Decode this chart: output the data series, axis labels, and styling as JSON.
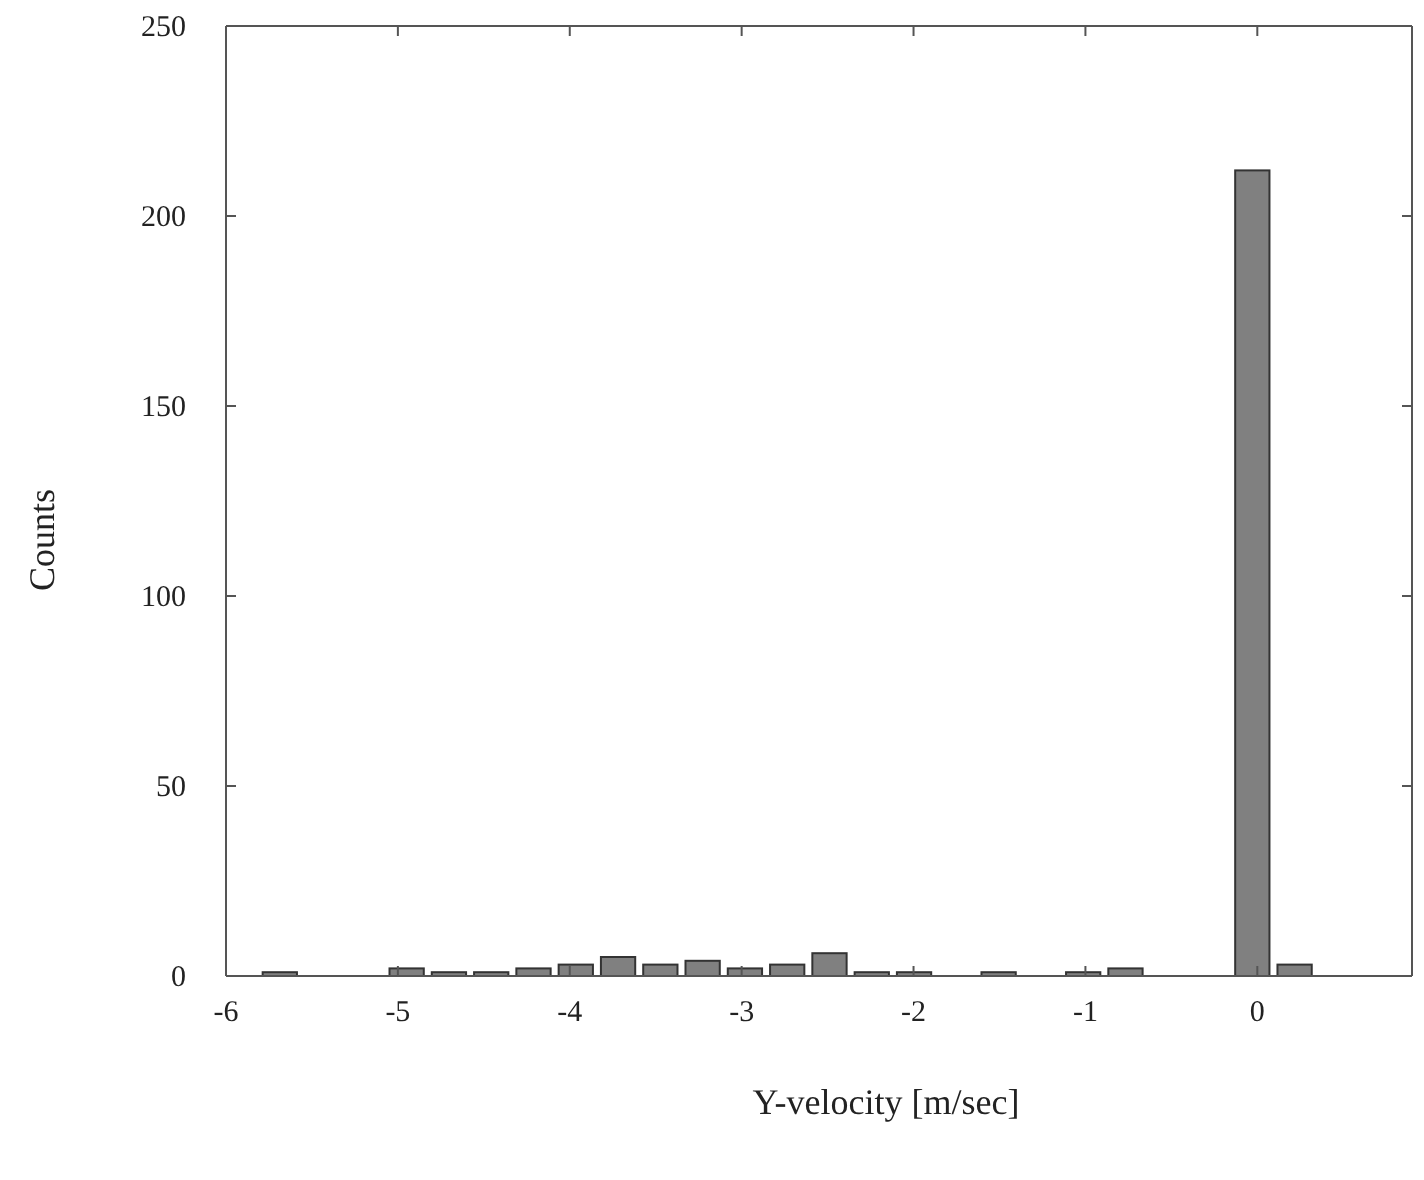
{
  "chart_data": {
    "type": "histogram",
    "xlabel": "Y-velocity [m/sec]",
    "ylabel": "Counts",
    "bins": [
      -5.81,
      -5.564,
      -5.318,
      -5.072,
      -4.826,
      -4.58,
      -4.334,
      -4.088,
      -3.842,
      -3.596,
      -3.35,
      -3.104,
      -2.858,
      -2.612,
      -2.366,
      -2.12,
      -1.874,
      -1.628,
      -1.382,
      -1.136,
      -0.89,
      -0.644,
      -0.398,
      -0.152,
      0.094,
      0.34
    ],
    "values": [
      1,
      0,
      0,
      2,
      1,
      1,
      2,
      3,
      5,
      3,
      4,
      2,
      3,
      6,
      1,
      1,
      0,
      1,
      0,
      1,
      2,
      0,
      0,
      212,
      3
    ],
    "color": "#808080",
    "xlim": [
      -6,
      0.9
    ],
    "xticks": [
      -6,
      -5,
      -4,
      -3,
      -2,
      -1,
      0
    ],
    "ylim": [
      0,
      250
    ],
    "yticks": [
      0,
      50,
      100,
      150,
      200,
      250
    ],
    "grid": false
  }
}
